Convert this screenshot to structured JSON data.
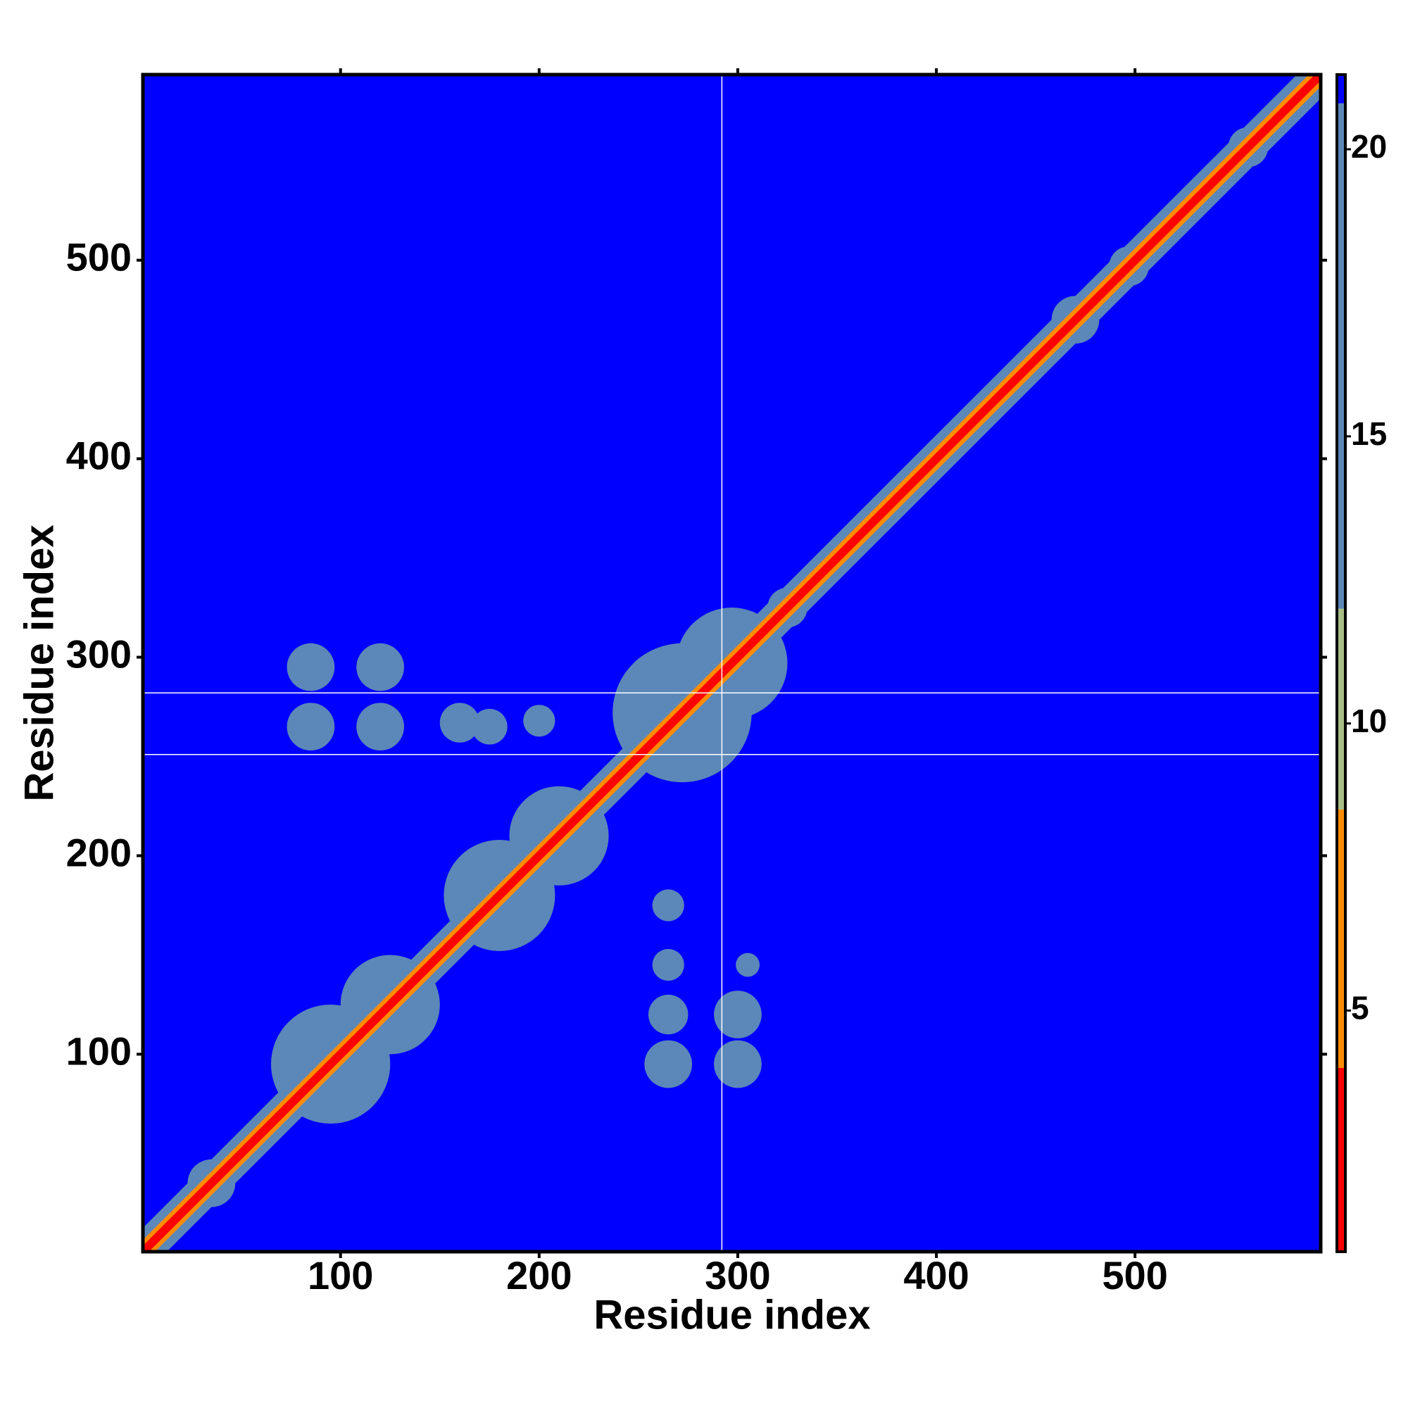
{
  "chart_data": {
    "type": "heatmap",
    "x_label": "Residue index",
    "y_label": "Residue index",
    "xlim": [
      0.5,
      593.5
    ],
    "ylim": [
      0.5,
      593.5
    ],
    "xticks": [
      100,
      200,
      300,
      400,
      500
    ],
    "yticks": [
      100,
      200,
      300,
      400,
      500
    ],
    "clim": [
      0.8,
      21.3
    ],
    "cticks": [
      5,
      10,
      15,
      20
    ],
    "color_steps": [
      {
        "max": 4,
        "color": "#ff0000"
      },
      {
        "max": 8.5,
        "color": "#ff8c00"
      },
      {
        "max": 12,
        "color": "#a9bd86"
      },
      {
        "max": 20.8,
        "color": "#5b88b8"
      },
      {
        "max": 21.3,
        "color": "#0000ff"
      }
    ],
    "fill_value": 21,
    "missing_x": [
      292
    ],
    "missing_y": [
      251,
      282
    ],
    "diagonal": [
      {
        "value": 15,
        "width": 12
      },
      {
        "value": 7,
        "width": 6
      },
      {
        "value": 2,
        "width": 3
      }
    ],
    "regions": [
      {
        "x": 35,
        "y": 35,
        "r": 12,
        "value": 16
      },
      {
        "x": 95,
        "y": 95,
        "r": 30,
        "value": 14
      },
      {
        "x": 125,
        "y": 125,
        "r": 25,
        "value": 14
      },
      {
        "x": 180,
        "y": 180,
        "r": 28,
        "value": 14
      },
      {
        "x": 210,
        "y": 210,
        "r": 25,
        "value": 14
      },
      {
        "x": 272,
        "y": 272,
        "r": 35,
        "value": 14
      },
      {
        "x": 297,
        "y": 297,
        "r": 28,
        "value": 14
      },
      {
        "x": 325,
        "y": 325,
        "r": 10,
        "value": 15
      },
      {
        "x": 355,
        "y": 355,
        "r": 7,
        "value": 15
      },
      {
        "x": 470,
        "y": 470,
        "r": 12,
        "value": 15
      },
      {
        "x": 497,
        "y": 497,
        "r": 10,
        "value": 15
      },
      {
        "x": 557,
        "y": 557,
        "r": 10,
        "value": 15
      },
      {
        "x": 85,
        "y": 295,
        "r": 12,
        "value": 18
      },
      {
        "x": 120,
        "y": 295,
        "r": 12,
        "value": 18
      },
      {
        "x": 85,
        "y": 265,
        "r": 12,
        "value": 18
      },
      {
        "x": 120,
        "y": 265,
        "r": 12,
        "value": 18
      },
      {
        "x": 160,
        "y": 267,
        "r": 10,
        "value": 18
      },
      {
        "x": 175,
        "y": 265,
        "r": 9,
        "value": 18
      },
      {
        "x": 200,
        "y": 268,
        "r": 8,
        "value": 18
      },
      {
        "x": 265,
        "y": 95,
        "r": 12,
        "value": 18
      },
      {
        "x": 300,
        "y": 95,
        "r": 12,
        "value": 18
      },
      {
        "x": 265,
        "y": 120,
        "r": 10,
        "value": 18
      },
      {
        "x": 300,
        "y": 120,
        "r": 12,
        "value": 18
      },
      {
        "x": 265,
        "y": 145,
        "r": 8,
        "value": 18
      },
      {
        "x": 265,
        "y": 175,
        "r": 8,
        "value": 18
      },
      {
        "x": 305,
        "y": 145,
        "r": 6,
        "value": 18
      }
    ]
  }
}
